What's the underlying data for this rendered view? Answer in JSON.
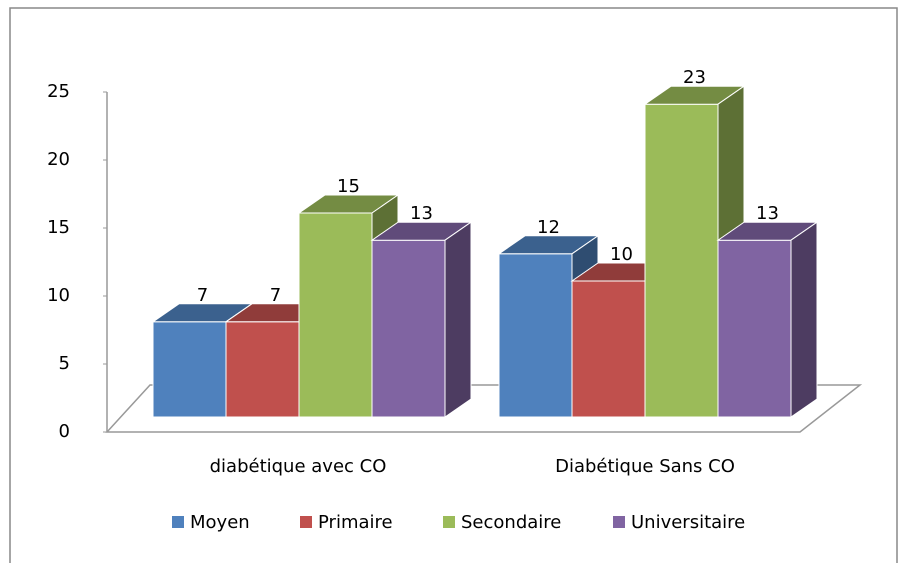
{
  "chart_data": {
    "type": "bar3d",
    "categories": [
      "diabétique avec CO",
      "Diabétique Sans CO"
    ],
    "series": [
      {
        "name": "Moyen",
        "color": "#4f81bd",
        "values": [
          7,
          12
        ]
      },
      {
        "name": "Primaire",
        "color": "#c0504d",
        "values": [
          7,
          10
        ]
      },
      {
        "name": "Secondaire",
        "color": "#9bbb59",
        "values": [
          15,
          23
        ]
      },
      {
        "name": "Universitaire",
        "color": "#8064a2",
        "values": [
          13,
          13
        ]
      }
    ],
    "ylim": [
      0,
      25
    ],
    "yticks": [
      0,
      5,
      10,
      15,
      20,
      25
    ],
    "grid": false,
    "legend": "bottom"
  }
}
